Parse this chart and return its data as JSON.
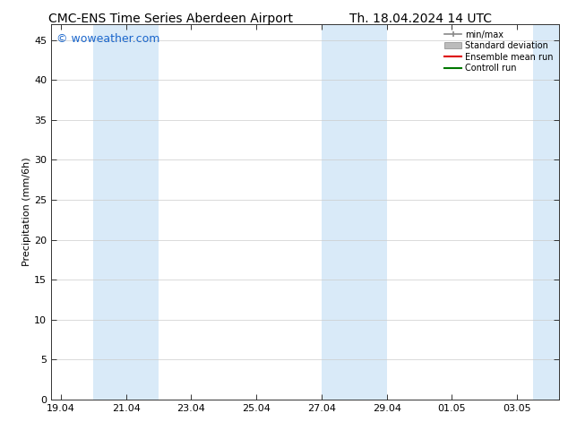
{
  "title_left": "CMC-ENS Time Series Aberdeen Airport",
  "title_right": "Th. 18.04.2024 14 UTC",
  "ylabel": "Precipitation (mm/6h)",
  "watermark": "© woweather.com",
  "ylim": [
    0,
    47
  ],
  "yticks": [
    0,
    5,
    10,
    15,
    20,
    25,
    30,
    35,
    40,
    45
  ],
  "xtick_labels": [
    "19.04",
    "21.04",
    "23.04",
    "25.04",
    "27.04",
    "29.04",
    "01.05",
    "03.05"
  ],
  "xtick_positions": [
    0,
    2,
    4,
    6,
    8,
    10,
    12,
    14
  ],
  "xlim": [
    -0.3,
    15.3
  ],
  "shade_color": "#d9eaf8",
  "shade_regions": [
    [
      0.5,
      1.0
    ],
    [
      1.5,
      2.5
    ],
    [
      7.5,
      8.5
    ],
    [
      9.0,
      10.0
    ],
    [
      14.5,
      15.3
    ]
  ],
  "legend_entries": [
    {
      "label": "min/max",
      "color": "#888888"
    },
    {
      "label": "Standard deviation",
      "color": "#bbbbbb"
    },
    {
      "label": "Ensemble mean run",
      "color": "#dd0000"
    },
    {
      "label": "Controll run",
      "color": "#007700"
    }
  ],
  "bg_color": "#ffffff",
  "grid_color": "#cccccc",
  "title_fontsize": 10,
  "label_fontsize": 8,
  "tick_fontsize": 8,
  "watermark_color": "#1a66cc",
  "watermark_fontsize": 9
}
